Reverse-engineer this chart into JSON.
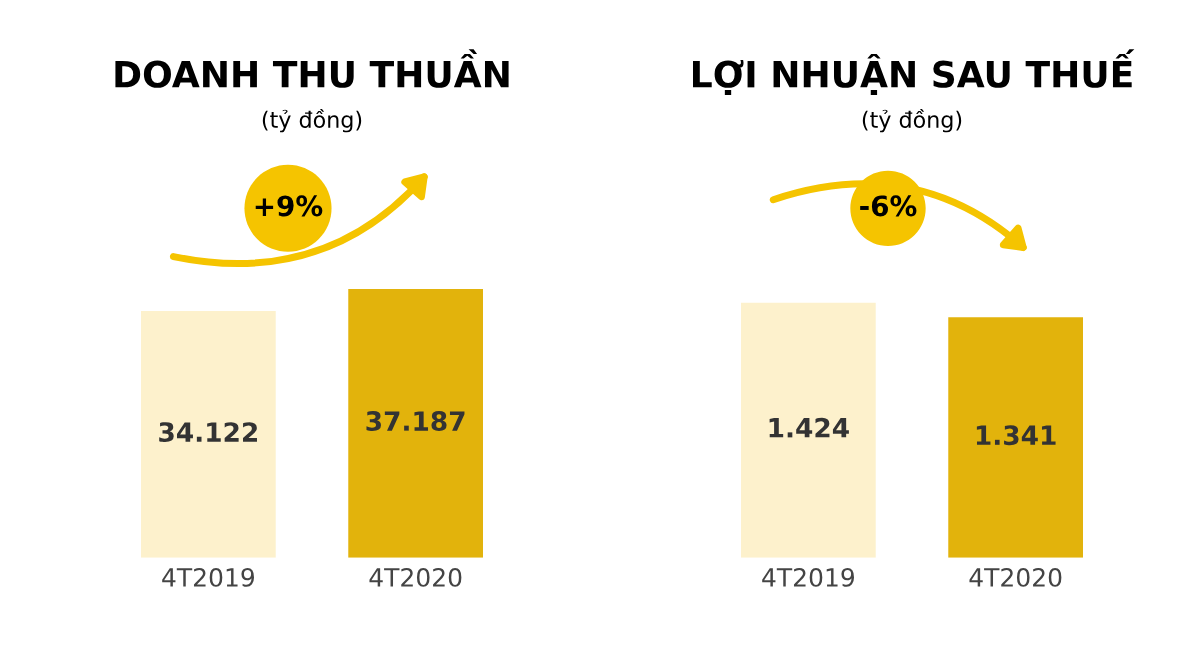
{
  "chart_data": [
    {
      "type": "bar",
      "title": "DOANH THU THUẦN",
      "subtitle": "(tỷ đồng)",
      "categories": [
        "4T2019",
        "4T2020"
      ],
      "values": [
        34122,
        37187
      ],
      "value_labels": [
        "34.122",
        "37.187"
      ],
      "colors": [
        "#fdf1cc",
        "#e2b30c"
      ],
      "annotations": [
        "+9%"
      ]
    },
    {
      "type": "bar",
      "title": "LỢI NHUẬN SAU THUẾ",
      "subtitle": "(tỷ đồng)",
      "categories": [
        "4T2019",
        "4T2020"
      ],
      "values": [
        1424,
        1341
      ],
      "value_labels": [
        "1.424",
        "1.341"
      ],
      "colors": [
        "#fdf1cc",
        "#e2b30c"
      ],
      "annotations": [
        "-6%"
      ]
    }
  ]
}
